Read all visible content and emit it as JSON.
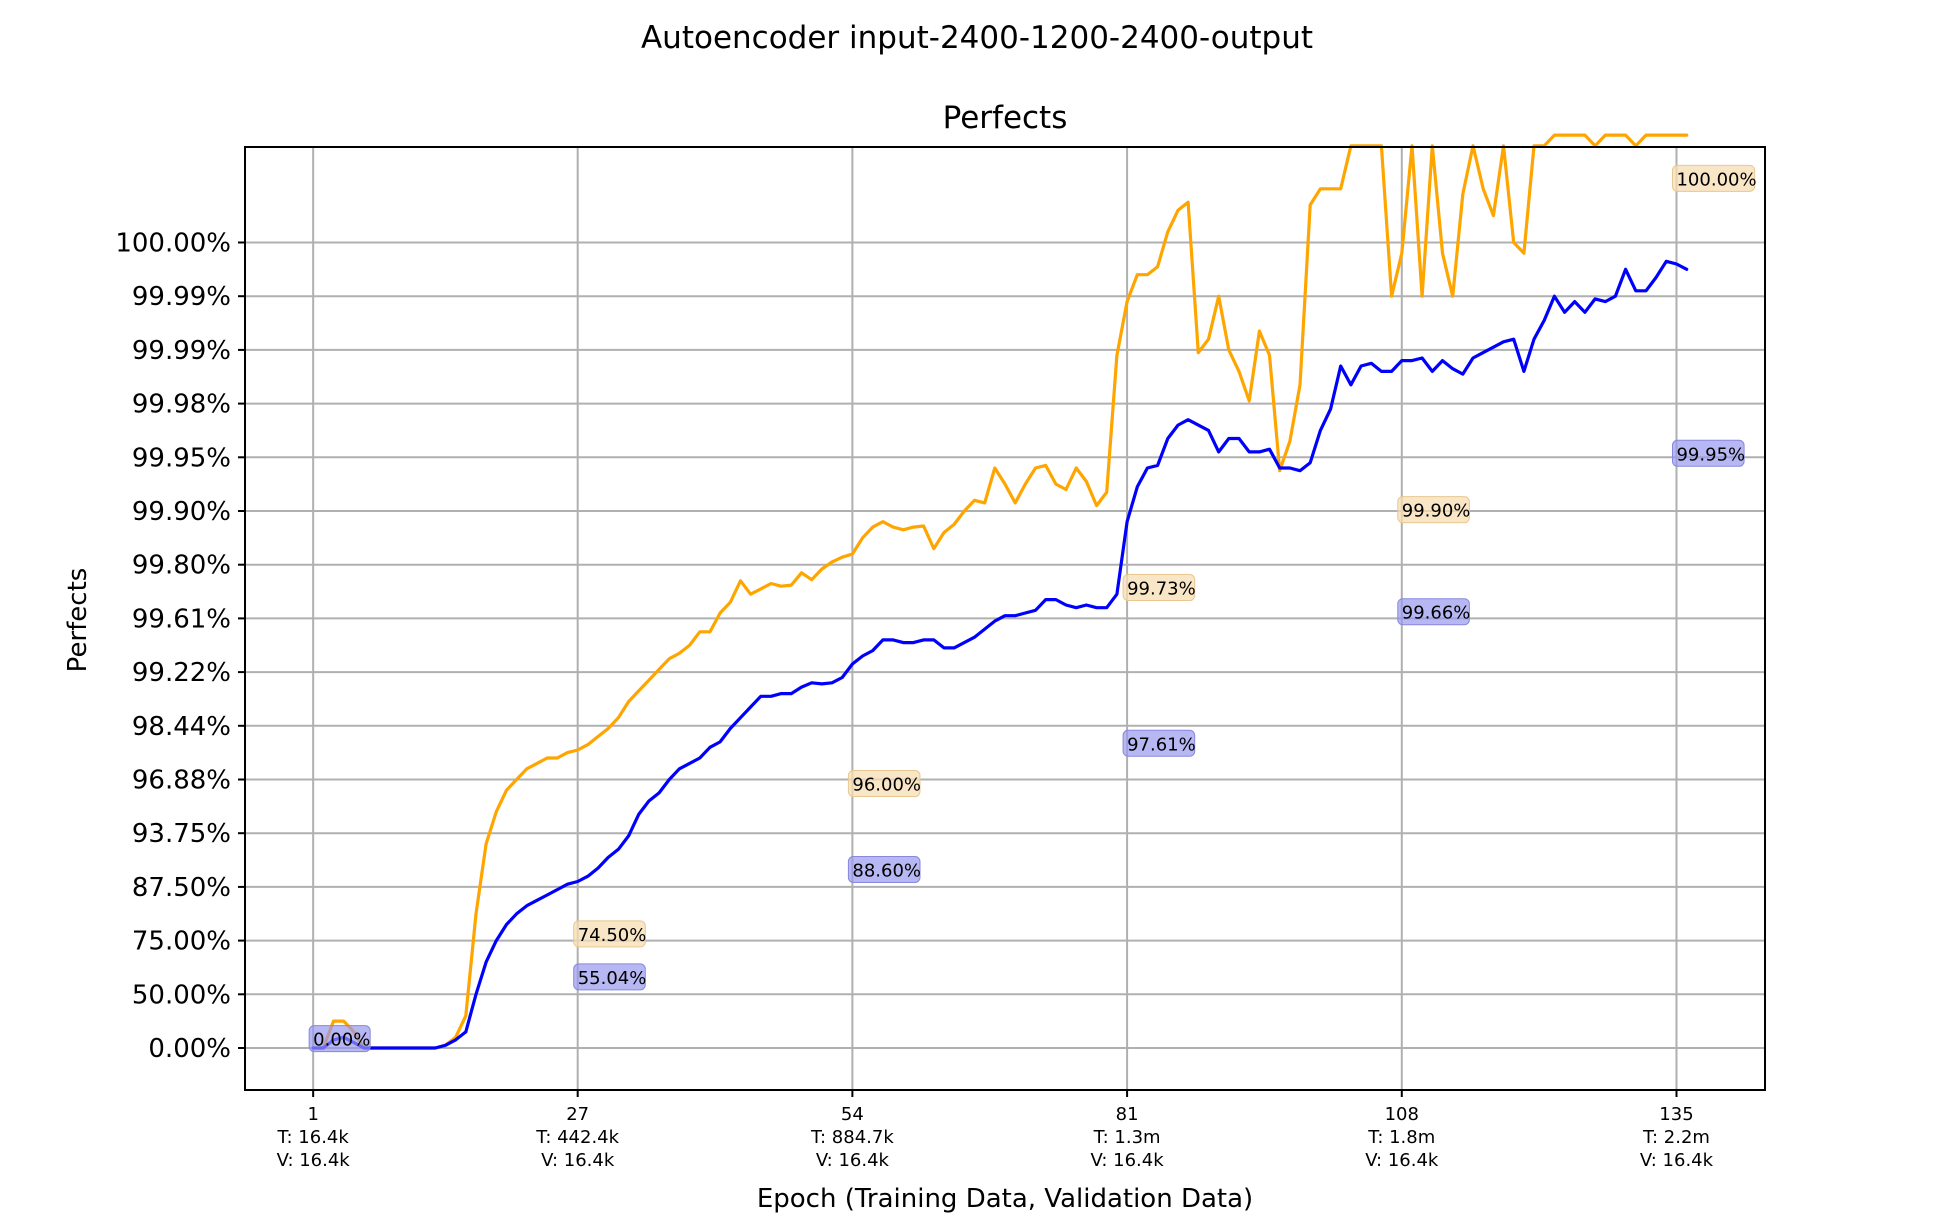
{
  "chart_data": {
    "type": "line",
    "suptitle": "Autoencoder input-2400-1200-2400-output",
    "title": "Perfects",
    "xlabel": "Epoch (Training Data, Validation Data)",
    "ylabel": "Perfects",
    "y_scale": "log-complement (each tick halves the remaining error)",
    "yticks": [
      "0.00%",
      "50.00%",
      "75.00%",
      "87.50%",
      "93.75%",
      "96.88%",
      "98.44%",
      "99.22%",
      "99.61%",
      "99.80%",
      "99.90%",
      "99.95%",
      "99.98%",
      "99.99%",
      "99.99%",
      "100.00%"
    ],
    "xticks": [
      {
        "epoch": 1,
        "lines": [
          "1",
          "T: 16.4k",
          "V: 16.4k"
        ]
      },
      {
        "epoch": 27,
        "lines": [
          "27",
          "T: 442.4k",
          "V: 16.4k"
        ]
      },
      {
        "epoch": 54,
        "lines": [
          "54",
          "T: 884.7k",
          "V: 16.4k"
        ]
      },
      {
        "epoch": 81,
        "lines": [
          "81",
          "T: 1.3m",
          "V: 16.4k"
        ]
      },
      {
        "epoch": 108,
        "lines": [
          "108",
          "T: 1.8m",
          "V: 16.4k"
        ]
      },
      {
        "epoch": 135,
        "lines": [
          "135",
          "T: 2.2m",
          "V: 16.4k"
        ]
      }
    ],
    "xlim": [
      -5.7,
      143.7
    ],
    "grid": true,
    "series": [
      {
        "color": "#ffa500",
        "points": [
          [
            1,
            0
          ],
          [
            2,
            0
          ],
          [
            3,
            0.5
          ],
          [
            4,
            0.5
          ],
          [
            5,
            0.3
          ],
          [
            6,
            0
          ],
          [
            7,
            0
          ],
          [
            8,
            0
          ],
          [
            9,
            0
          ],
          [
            10,
            0
          ],
          [
            11,
            0
          ],
          [
            12,
            0
          ],
          [
            13,
            0
          ],
          [
            14,
            0.05
          ],
          [
            15,
            0.2
          ],
          [
            16,
            0.6
          ],
          [
            17,
            2.5
          ],
          [
            18,
            3.8
          ],
          [
            19,
            4.4
          ],
          [
            20,
            4.8
          ],
          [
            21,
            5.0
          ],
          [
            22,
            5.2
          ],
          [
            23,
            5.3
          ],
          [
            24,
            5.4
          ],
          [
            25,
            5.4
          ],
          [
            26,
            5.5
          ],
          [
            27,
            5.55
          ],
          [
            28,
            5.65
          ],
          [
            29,
            5.8
          ],
          [
            30,
            5.95
          ],
          [
            31,
            6.15
          ],
          [
            32,
            6.45
          ],
          [
            33,
            6.65
          ],
          [
            34,
            6.85
          ],
          [
            35,
            7.05
          ],
          [
            36,
            7.25
          ],
          [
            37,
            7.35
          ],
          [
            38,
            7.5
          ],
          [
            39,
            7.75
          ],
          [
            40,
            7.75
          ],
          [
            41,
            8.1
          ],
          [
            42,
            8.3
          ],
          [
            43,
            8.7
          ],
          [
            44,
            8.45
          ],
          [
            45,
            8.55
          ],
          [
            46,
            8.65
          ],
          [
            47,
            8.6
          ],
          [
            48,
            8.62
          ],
          [
            49,
            8.85
          ],
          [
            50,
            8.72
          ],
          [
            51,
            8.92
          ],
          [
            52,
            9.05
          ],
          [
            53,
            9.14
          ],
          [
            54,
            9.2
          ],
          [
            55,
            9.5
          ],
          [
            56,
            9.7
          ],
          [
            57,
            9.8
          ],
          [
            58,
            9.7
          ],
          [
            59,
            9.65
          ],
          [
            60,
            9.7
          ],
          [
            61,
            9.72
          ],
          [
            62,
            9.3
          ],
          [
            63,
            9.6
          ],
          [
            64,
            9.75
          ],
          [
            65,
            10.0
          ],
          [
            66,
            10.2
          ],
          [
            67,
            10.15
          ],
          [
            68,
            10.8
          ],
          [
            69,
            10.5
          ],
          [
            70,
            10.15
          ],
          [
            71,
            10.5
          ],
          [
            72,
            10.8
          ],
          [
            73,
            10.85
          ],
          [
            74,
            10.5
          ],
          [
            75,
            10.4
          ],
          [
            76,
            10.8
          ],
          [
            77,
            10.55
          ],
          [
            78,
            10.1
          ],
          [
            79,
            10.35
          ],
          [
            80,
            12.9
          ],
          [
            81,
            13.9
          ],
          [
            82,
            14.4
          ],
          [
            83,
            14.4
          ],
          [
            84,
            14.55
          ],
          [
            85,
            15.2
          ],
          [
            86,
            15.6
          ],
          [
            87,
            15.75
          ],
          [
            88,
            12.95
          ],
          [
            89,
            13.2
          ],
          [
            90,
            14.0
          ],
          [
            91,
            13.0
          ],
          [
            92,
            12.6
          ],
          [
            93,
            12.05
          ],
          [
            94,
            13.35
          ],
          [
            95,
            12.9
          ],
          [
            96,
            10.75
          ],
          [
            97,
            11.3
          ],
          [
            98,
            12.35
          ],
          [
            99,
            15.7
          ],
          [
            100,
            16.0
          ],
          [
            101,
            16.0
          ],
          [
            102,
            16.0
          ],
          [
            103,
            16.8
          ],
          [
            104,
            16.8
          ],
          [
            105,
            16.8
          ],
          [
            106,
            16.8
          ],
          [
            107,
            14.0
          ],
          [
            108,
            14.8
          ],
          [
            109,
            16.8
          ],
          [
            110,
            14.0
          ],
          [
            111,
            16.8
          ],
          [
            112,
            14.8
          ],
          [
            113,
            14.0
          ],
          [
            114,
            15.9
          ],
          [
            115,
            16.8
          ],
          [
            116,
            16.0
          ],
          [
            117,
            15.5
          ],
          [
            118,
            16.8
          ],
          [
            119,
            15.0
          ],
          [
            120,
            14.8
          ],
          [
            121,
            16.8
          ],
          [
            122,
            16.8
          ],
          [
            123,
            17.0
          ],
          [
            124,
            17.0
          ],
          [
            125,
            17.0
          ],
          [
            126,
            17.0
          ],
          [
            127,
            16.8
          ],
          [
            128,
            17.0
          ],
          [
            129,
            17.0
          ],
          [
            130,
            17.0
          ],
          [
            131,
            16.8
          ],
          [
            132,
            17.0
          ],
          [
            133,
            17.0
          ],
          [
            134,
            17.0
          ],
          [
            135,
            17.0
          ],
          [
            136,
            17.0
          ]
        ]
      },
      {
        "color": "#0000ff",
        "points": [
          [
            1,
            0
          ],
          [
            2,
            0
          ],
          [
            3,
            0.15
          ],
          [
            4,
            0.2
          ],
          [
            5,
            0.1
          ],
          [
            6,
            0
          ],
          [
            7,
            0
          ],
          [
            8,
            0
          ],
          [
            9,
            0
          ],
          [
            10,
            0
          ],
          [
            11,
            0
          ],
          [
            12,
            0
          ],
          [
            13,
            0
          ],
          [
            14,
            0.05
          ],
          [
            15,
            0.15
          ],
          [
            16,
            0.3
          ],
          [
            17,
            1.0
          ],
          [
            18,
            1.6
          ],
          [
            19,
            2.0
          ],
          [
            20,
            2.3
          ],
          [
            21,
            2.5
          ],
          [
            22,
            2.65
          ],
          [
            23,
            2.75
          ],
          [
            24,
            2.85
          ],
          [
            25,
            2.95
          ],
          [
            26,
            3.05
          ],
          [
            27,
            3.1
          ],
          [
            28,
            3.2
          ],
          [
            29,
            3.35
          ],
          [
            30,
            3.55
          ],
          [
            31,
            3.7
          ],
          [
            32,
            3.95
          ],
          [
            33,
            4.35
          ],
          [
            34,
            4.6
          ],
          [
            35,
            4.75
          ],
          [
            36,
            5.0
          ],
          [
            37,
            5.2
          ],
          [
            38,
            5.3
          ],
          [
            39,
            5.4
          ],
          [
            40,
            5.6
          ],
          [
            41,
            5.7
          ],
          [
            42,
            5.95
          ],
          [
            43,
            6.15
          ],
          [
            44,
            6.35
          ],
          [
            45,
            6.55
          ],
          [
            46,
            6.55
          ],
          [
            47,
            6.6
          ],
          [
            48,
            6.6
          ],
          [
            49,
            6.72
          ],
          [
            50,
            6.8
          ],
          [
            51,
            6.78
          ],
          [
            52,
            6.8
          ],
          [
            53,
            6.9
          ],
          [
            54,
            7.15
          ],
          [
            55,
            7.3
          ],
          [
            56,
            7.4
          ],
          [
            57,
            7.6
          ],
          [
            58,
            7.6
          ],
          [
            59,
            7.55
          ],
          [
            60,
            7.55
          ],
          [
            61,
            7.6
          ],
          [
            62,
            7.6
          ],
          [
            63,
            7.45
          ],
          [
            64,
            7.45
          ],
          [
            65,
            7.55
          ],
          [
            66,
            7.65
          ],
          [
            67,
            7.8
          ],
          [
            68,
            7.95
          ],
          [
            69,
            8.05
          ],
          [
            70,
            8.05
          ],
          [
            71,
            8.1
          ],
          [
            72,
            8.15
          ],
          [
            73,
            8.35
          ],
          [
            74,
            8.35
          ],
          [
            75,
            8.25
          ],
          [
            76,
            8.2
          ],
          [
            77,
            8.25
          ],
          [
            78,
            8.2
          ],
          [
            79,
            8.2
          ],
          [
            80,
            8.45
          ],
          [
            81,
            9.8
          ],
          [
            82,
            10.45
          ],
          [
            83,
            10.8
          ],
          [
            84,
            10.85
          ],
          [
            85,
            11.35
          ],
          [
            86,
            11.6
          ],
          [
            87,
            11.7
          ],
          [
            88,
            11.6
          ],
          [
            89,
            11.5
          ],
          [
            90,
            11.1
          ],
          [
            91,
            11.35
          ],
          [
            92,
            11.35
          ],
          [
            93,
            11.1
          ],
          [
            94,
            11.1
          ],
          [
            95,
            11.15
          ],
          [
            96,
            10.8
          ],
          [
            97,
            10.8
          ],
          [
            98,
            10.75
          ],
          [
            99,
            10.9
          ],
          [
            100,
            11.5
          ],
          [
            101,
            11.9
          ],
          [
            102,
            12.7
          ],
          [
            103,
            12.35
          ],
          [
            104,
            12.7
          ],
          [
            105,
            12.75
          ],
          [
            106,
            12.6
          ],
          [
            107,
            12.6
          ],
          [
            108,
            12.8
          ],
          [
            109,
            12.8
          ],
          [
            110,
            12.85
          ],
          [
            111,
            12.6
          ],
          [
            112,
            12.8
          ],
          [
            113,
            12.65
          ],
          [
            114,
            12.55
          ],
          [
            115,
            12.85
          ],
          [
            116,
            12.95
          ],
          [
            117,
            13.05
          ],
          [
            118,
            13.15
          ],
          [
            119,
            13.2
          ],
          [
            120,
            12.6
          ],
          [
            121,
            13.2
          ],
          [
            122,
            13.55
          ],
          [
            123,
            14.0
          ],
          [
            124,
            13.7
          ],
          [
            125,
            13.9
          ],
          [
            126,
            13.7
          ],
          [
            127,
            13.95
          ],
          [
            128,
            13.9
          ],
          [
            129,
            14.0
          ],
          [
            130,
            14.5
          ],
          [
            131,
            14.1
          ],
          [
            132,
            14.1
          ],
          [
            133,
            14.35
          ],
          [
            134,
            14.65
          ],
          [
            135,
            14.6
          ],
          [
            136,
            14.5
          ]
        ]
      }
    ],
    "annotations": [
      {
        "text": "0.00%",
        "epoch": 1,
        "pos": 0.1,
        "series": 1
      },
      {
        "text": "74.50%",
        "epoch": 27,
        "pos": 2.05,
        "series": 0
      },
      {
        "text": "55.04%",
        "epoch": 27,
        "pos": 1.25,
        "series": 1
      },
      {
        "text": "96.00%",
        "epoch": 54,
        "pos": 4.85,
        "series": 0
      },
      {
        "text": "88.60%",
        "epoch": 54,
        "pos": 3.25,
        "series": 1
      },
      {
        "text": "99.73%",
        "epoch": 81,
        "pos": 8.5,
        "series": 0
      },
      {
        "text": "97.61%",
        "epoch": 81,
        "pos": 5.6,
        "series": 1
      },
      {
        "text": "99.90%",
        "epoch": 108,
        "pos": 9.95,
        "series": 0
      },
      {
        "text": "99.66%",
        "epoch": 108,
        "pos": 8.05,
        "series": 1
      },
      {
        "text": "100.00%",
        "epoch": 135,
        "pos": 16.12,
        "series": 0
      },
      {
        "text": "99.95%",
        "epoch": 135,
        "pos": 11.0,
        "series": 1
      }
    ],
    "colors": {
      "train": "#ffa500",
      "validation": "#0000ff",
      "train_box": "#f5deb3",
      "validation_box": "#9999ee"
    }
  }
}
